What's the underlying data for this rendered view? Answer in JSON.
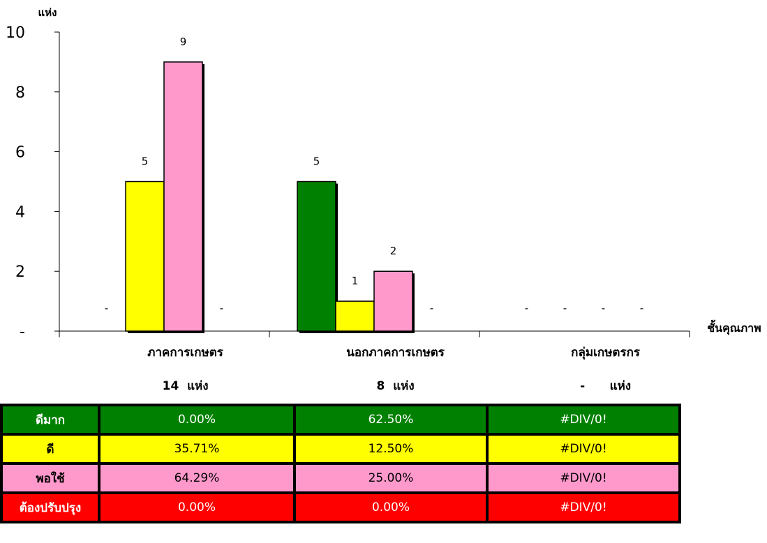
{
  "chart_data": {
    "type": "bar",
    "ylabel": "แห่ง",
    "xlabel": "ชั้นคุณภาพ",
    "ylim": [
      0,
      10
    ],
    "yticks": [
      {
        "value": 0,
        "label": "-"
      },
      {
        "value": 2,
        "label": "2"
      },
      {
        "value": 4,
        "label": "4"
      },
      {
        "value": 6,
        "label": "6"
      },
      {
        "value": 8,
        "label": "8"
      },
      {
        "value": 10,
        "label": "10"
      }
    ],
    "categories": [
      "ภาคการเกษตร",
      "นอกภาคการเกษตร",
      "กลุ่มเกษตรกร"
    ],
    "category_counts": [
      "14  แห่ง",
      "8  แห่ง",
      "-      แห่ง"
    ],
    "series": [
      {
        "name": "ดีมาก",
        "color": "#008000",
        "values": [
          0,
          5,
          0
        ],
        "labels": [
          "-",
          "5",
          "-"
        ]
      },
      {
        "name": "ดี",
        "color": "#ffff00",
        "values": [
          5,
          1,
          0
        ],
        "labels": [
          "5",
          "1",
          "-"
        ]
      },
      {
        "name": "พอใช้",
        "color": "#ff99cc",
        "values": [
          9,
          2,
          0
        ],
        "labels": [
          "9",
          "2",
          "-"
        ]
      },
      {
        "name": "ต้องปรับปรุง",
        "color": "#ff0000",
        "values": [
          0,
          0,
          0
        ],
        "labels": [
          "-",
          "-",
          "-"
        ]
      }
    ],
    "grid": false
  },
  "table": {
    "rows": [
      {
        "label": "ดีมาก",
        "bg": "#008000",
        "fg": "#ffffff",
        "cells": [
          "0.00%",
          "62.50%",
          "#DIV/0!"
        ]
      },
      {
        "label": "ดี",
        "bg": "#ffff00",
        "fg": "#000000",
        "cells": [
          "35.71%",
          "12.50%",
          "#DIV/0!"
        ]
      },
      {
        "label": "พอใช้",
        "bg": "#ff99cc",
        "fg": "#000000",
        "cells": [
          "64.29%",
          "25.00%",
          "#DIV/0!"
        ]
      },
      {
        "label": "ต้องปรับปรุง",
        "bg": "#ff0000",
        "fg": "#ffffff",
        "cells": [
          "0.00%",
          "0.00%",
          "#DIV/0!"
        ]
      }
    ]
  }
}
